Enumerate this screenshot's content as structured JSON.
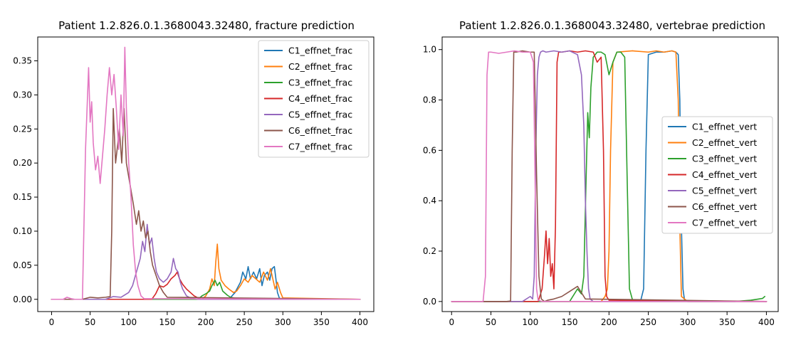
{
  "chart_data": [
    {
      "type": "line",
      "title": "Patient 1.2.826.0.1.3680043.32480, fracture prediction",
      "xlabel": "",
      "ylabel": "",
      "xlim": [
        -18,
        418
      ],
      "ylim": [
        -0.018,
        0.385
      ],
      "xticks": [
        0,
        50,
        100,
        150,
        200,
        250,
        300,
        350,
        400
      ],
      "xtick_labels": [
        "0",
        "50",
        "100",
        "150",
        "200",
        "250",
        "300",
        "350",
        "400"
      ],
      "yticks": [
        0.0,
        0.05,
        0.1,
        0.15,
        0.2,
        0.25,
        0.3,
        0.35
      ],
      "ytick_labels": [
        "0.00",
        "0.05",
        "0.10",
        "0.15",
        "0.20",
        "0.25",
        "0.30",
        "0.35"
      ],
      "grid": false,
      "legend_position": "top-right",
      "series": [
        {
          "name": "C1_effnet_frac",
          "color": "#1f77b4",
          "x": [
            0,
            230,
            238,
            245,
            248,
            252,
            255,
            258,
            262,
            266,
            270,
            273,
            276,
            280,
            283,
            286,
            289,
            291,
            293,
            296,
            300,
            400
          ],
          "y": [
            0,
            0,
            0.01,
            0.025,
            0.04,
            0.03,
            0.048,
            0.03,
            0.04,
            0.03,
            0.045,
            0.02,
            0.035,
            0.04,
            0.028,
            0.045,
            0.048,
            0.03,
            0.01,
            0,
            0,
            0
          ]
        },
        {
          "name": "C2_effnet_frac",
          "color": "#ff7f0e",
          "x": [
            0,
            195,
            200,
            205,
            208,
            211,
            213,
            215,
            217,
            220,
            225,
            230,
            236,
            240,
            245,
            250,
            255,
            260,
            265,
            270,
            275,
            280,
            284,
            287,
            290,
            293,
            297,
            300,
            400
          ],
          "y": [
            0,
            0,
            0.005,
            0.015,
            0.03,
            0.02,
            0.055,
            0.081,
            0.045,
            0.028,
            0.02,
            0.015,
            0.01,
            0.012,
            0.02,
            0.03,
            0.025,
            0.035,
            0.03,
            0.025,
            0.04,
            0.028,
            0.045,
            0.03,
            0.015,
            0.025,
            0.01,
            0.002,
            0
          ]
        },
        {
          "name": "C3_effnet_frac",
          "color": "#2ca02c",
          "x": [
            0,
            190,
            195,
            200,
            205,
            208,
            212,
            215,
            218,
            222,
            228,
            232,
            236,
            240,
            250,
            400
          ],
          "y": [
            0,
            0,
            0.005,
            0.008,
            0.012,
            0.02,
            0.028,
            0.02,
            0.025,
            0.012,
            0.006,
            0.003,
            0.002,
            0.001,
            0,
            0
          ]
        },
        {
          "name": "C4_effnet_frac",
          "color": "#d62728",
          "x": [
            0,
            130,
            135,
            140,
            145,
            150,
            155,
            160,
            163,
            166,
            170,
            175,
            180,
            185,
            190,
            195,
            400
          ],
          "y": [
            0,
            0,
            0.008,
            0.02,
            0.018,
            0.022,
            0.03,
            0.035,
            0.04,
            0.03,
            0.022,
            0.015,
            0.01,
            0.005,
            0.002,
            0,
            0
          ]
        },
        {
          "name": "C5_effnet_frac",
          "color": "#9467bd",
          "x": [
            0,
            70,
            80,
            90,
            100,
            105,
            110,
            115,
            118,
            121,
            124,
            127,
            130,
            133,
            136,
            140,
            145,
            150,
            155,
            158,
            161,
            164,
            167,
            170,
            175,
            180,
            190,
            400
          ],
          "y": [
            0,
            0,
            0.004,
            0.003,
            0.01,
            0.02,
            0.04,
            0.06,
            0.085,
            0.07,
            0.11,
            0.08,
            0.09,
            0.06,
            0.04,
            0.03,
            0.025,
            0.03,
            0.04,
            0.06,
            0.045,
            0.04,
            0.025,
            0.015,
            0.005,
            0.002,
            0,
            0
          ]
        },
        {
          "name": "C6_effnet_frac",
          "color": "#8c564b",
          "x": [
            0,
            40,
            50,
            60,
            70,
            76,
            78,
            80,
            83,
            86,
            88,
            91,
            94,
            97,
            100,
            103,
            106,
            110,
            113,
            116,
            119,
            122,
            125,
            128,
            131,
            134,
            137,
            140,
            145,
            150,
            400
          ],
          "y": [
            0,
            0,
            0.003,
            0.002,
            0.003,
            0.004,
            0.1,
            0.28,
            0.2,
            0.23,
            0.25,
            0.2,
            0.28,
            0.2,
            0.18,
            0.16,
            0.14,
            0.11,
            0.13,
            0.1,
            0.115,
            0.09,
            0.1,
            0.07,
            0.05,
            0.04,
            0.03,
            0.02,
            0.01,
            0.003,
            0
          ]
        },
        {
          "name": "C7_effnet_frac",
          "color": "#e377c2",
          "x": [
            0,
            15,
            20,
            25,
            30,
            40,
            44,
            46,
            48,
            50,
            52,
            54,
            57,
            60,
            63,
            66,
            69,
            72,
            75,
            78,
            81,
            84,
            87,
            90,
            93,
            95,
            97,
            100,
            103,
            106,
            109,
            112,
            116,
            120,
            400
          ],
          "y": [
            0,
            0,
            0.003,
            0.001,
            0,
            0,
            0.22,
            0.28,
            0.34,
            0.26,
            0.29,
            0.23,
            0.19,
            0.21,
            0.17,
            0.21,
            0.25,
            0.3,
            0.34,
            0.3,
            0.33,
            0.28,
            0.22,
            0.3,
            0.24,
            0.37,
            0.28,
            0.2,
            0.15,
            0.08,
            0.04,
            0.02,
            0.005,
            0.001,
            0
          ]
        }
      ],
      "legend": [
        "C1_effnet_frac",
        "C2_effnet_frac",
        "C3_effnet_frac",
        "C4_effnet_frac",
        "C5_effnet_frac",
        "C6_effnet_frac",
        "C7_effnet_frac"
      ]
    },
    {
      "type": "line",
      "title": "Patient 1.2.826.0.1.3680043.32480, vertebrae prediction",
      "xlabel": "",
      "ylabel": "",
      "xlim": [
        -12,
        415
      ],
      "ylim": [
        -0.04,
        1.05
      ],
      "xticks": [
        0,
        50,
        100,
        150,
        200,
        250,
        300,
        350,
        400
      ],
      "xtick_labels": [
        "0",
        "50",
        "100",
        "150",
        "200",
        "250",
        "300",
        "350",
        "400"
      ],
      "yticks": [
        0.0,
        0.2,
        0.4,
        0.6,
        0.8,
        1.0
      ],
      "ytick_labels": [
        "0.0",
        "0.2",
        "0.4",
        "0.6",
        "0.8",
        "1.0"
      ],
      "grid": false,
      "legend_position": "center-right",
      "series": [
        {
          "name": "C1_effnet_vert",
          "color": "#1f77b4",
          "x": [
            0,
            240,
            244,
            247,
            250,
            260,
            270,
            280,
            285,
            288,
            290,
            292,
            294,
            296,
            300,
            400
          ],
          "y": [
            0,
            0,
            0.05,
            0.6,
            0.98,
            0.99,
            0.99,
            0.995,
            0.99,
            0.98,
            0.8,
            0.3,
            0.05,
            0.005,
            0,
            0
          ]
        },
        {
          "name": "C2_effnet_vert",
          "color": "#ff7f0e",
          "x": [
            0,
            190,
            195,
            198,
            200,
            202,
            205,
            210,
            230,
            250,
            260,
            270,
            280,
            285,
            288,
            290,
            292,
            300,
            400
          ],
          "y": [
            0,
            0,
            0.02,
            0.05,
            0.2,
            0.6,
            0.95,
            0.99,
            0.995,
            0.99,
            0.995,
            0.99,
            0.995,
            0.99,
            0.8,
            0.3,
            0.02,
            0,
            0
          ]
        },
        {
          "name": "C3_effnet_vert",
          "color": "#2ca02c",
          "x": [
            0,
            150,
            160,
            165,
            168,
            171,
            173,
            175,
            177,
            180,
            185,
            190,
            195,
            200,
            205,
            210,
            215,
            220,
            223,
            226,
            230,
            240,
            360,
            380,
            395,
            398
          ],
          "y": [
            0,
            0,
            0.05,
            0.03,
            0.1,
            0.5,
            0.75,
            0.65,
            0.85,
            0.97,
            0.99,
            0.99,
            0.98,
            0.9,
            0.95,
            0.99,
            0.99,
            0.97,
            0.5,
            0.05,
            0.005,
            0,
            0,
            0.005,
            0.012,
            0.02
          ]
        },
        {
          "name": "C4_effnet_vert",
          "color": "#d62728",
          "x": [
            0,
            110,
            115,
            118,
            120,
            122,
            124,
            126,
            128,
            130,
            132,
            134,
            136,
            140,
            150,
            160,
            170,
            180,
            185,
            190,
            193,
            195,
            197,
            200,
            400
          ],
          "y": [
            0,
            0,
            0.05,
            0.18,
            0.28,
            0.15,
            0.25,
            0.1,
            0.15,
            0.05,
            0.3,
            0.95,
            0.99,
            0.99,
            0.995,
            0.99,
            0.995,
            0.99,
            0.95,
            0.97,
            0.6,
            0.1,
            0.02,
            0.005,
            0
          ]
        },
        {
          "name": "C5_effnet_vert",
          "color": "#9467bd",
          "x": [
            0,
            90,
            100,
            103,
            105,
            107,
            109,
            111,
            113,
            116,
            120,
            130,
            140,
            150,
            160,
            165,
            168,
            170,
            172,
            174,
            176,
            180,
            190,
            400
          ],
          "y": [
            0,
            0,
            0.02,
            0.01,
            0.1,
            0.6,
            0.9,
            0.97,
            0.99,
            0.995,
            0.99,
            0.995,
            0.99,
            0.995,
            0.98,
            0.9,
            0.7,
            0.4,
            0.2,
            0.05,
            0.01,
            0,
            0,
            0
          ]
        },
        {
          "name": "C6_effnet_vert",
          "color": "#8c564b",
          "x": [
            0,
            70,
            75,
            77,
            79,
            82,
            90,
            100,
            105,
            108,
            111,
            114,
            118,
            122,
            130,
            140,
            150,
            160,
            170,
            400
          ],
          "y": [
            0,
            0,
            0.002,
            0.6,
            0.99,
            0.99,
            0.995,
            0.99,
            0.99,
            0.5,
            0.1,
            0.01,
            0,
            0.005,
            0.01,
            0.02,
            0.04,
            0.06,
            0.01,
            0
          ]
        },
        {
          "name": "C7_effnet_vert",
          "color": "#e377c2",
          "x": [
            0,
            40,
            43,
            45,
            47,
            50,
            60,
            70,
            80,
            90,
            100,
            104,
            106,
            108,
            110,
            115,
            120,
            400
          ],
          "y": [
            0,
            0,
            0.1,
            0.9,
            0.99,
            0.99,
            0.985,
            0.99,
            0.995,
            0.99,
            0.99,
            0.95,
            0.5,
            0.05,
            0.005,
            0,
            0,
            0
          ]
        }
      ],
      "legend": [
        "C1_effnet_vert",
        "C2_effnet_vert",
        "C3_effnet_vert",
        "C4_effnet_vert",
        "C5_effnet_vert",
        "C6_effnet_vert",
        "C7_effnet_vert"
      ]
    }
  ]
}
